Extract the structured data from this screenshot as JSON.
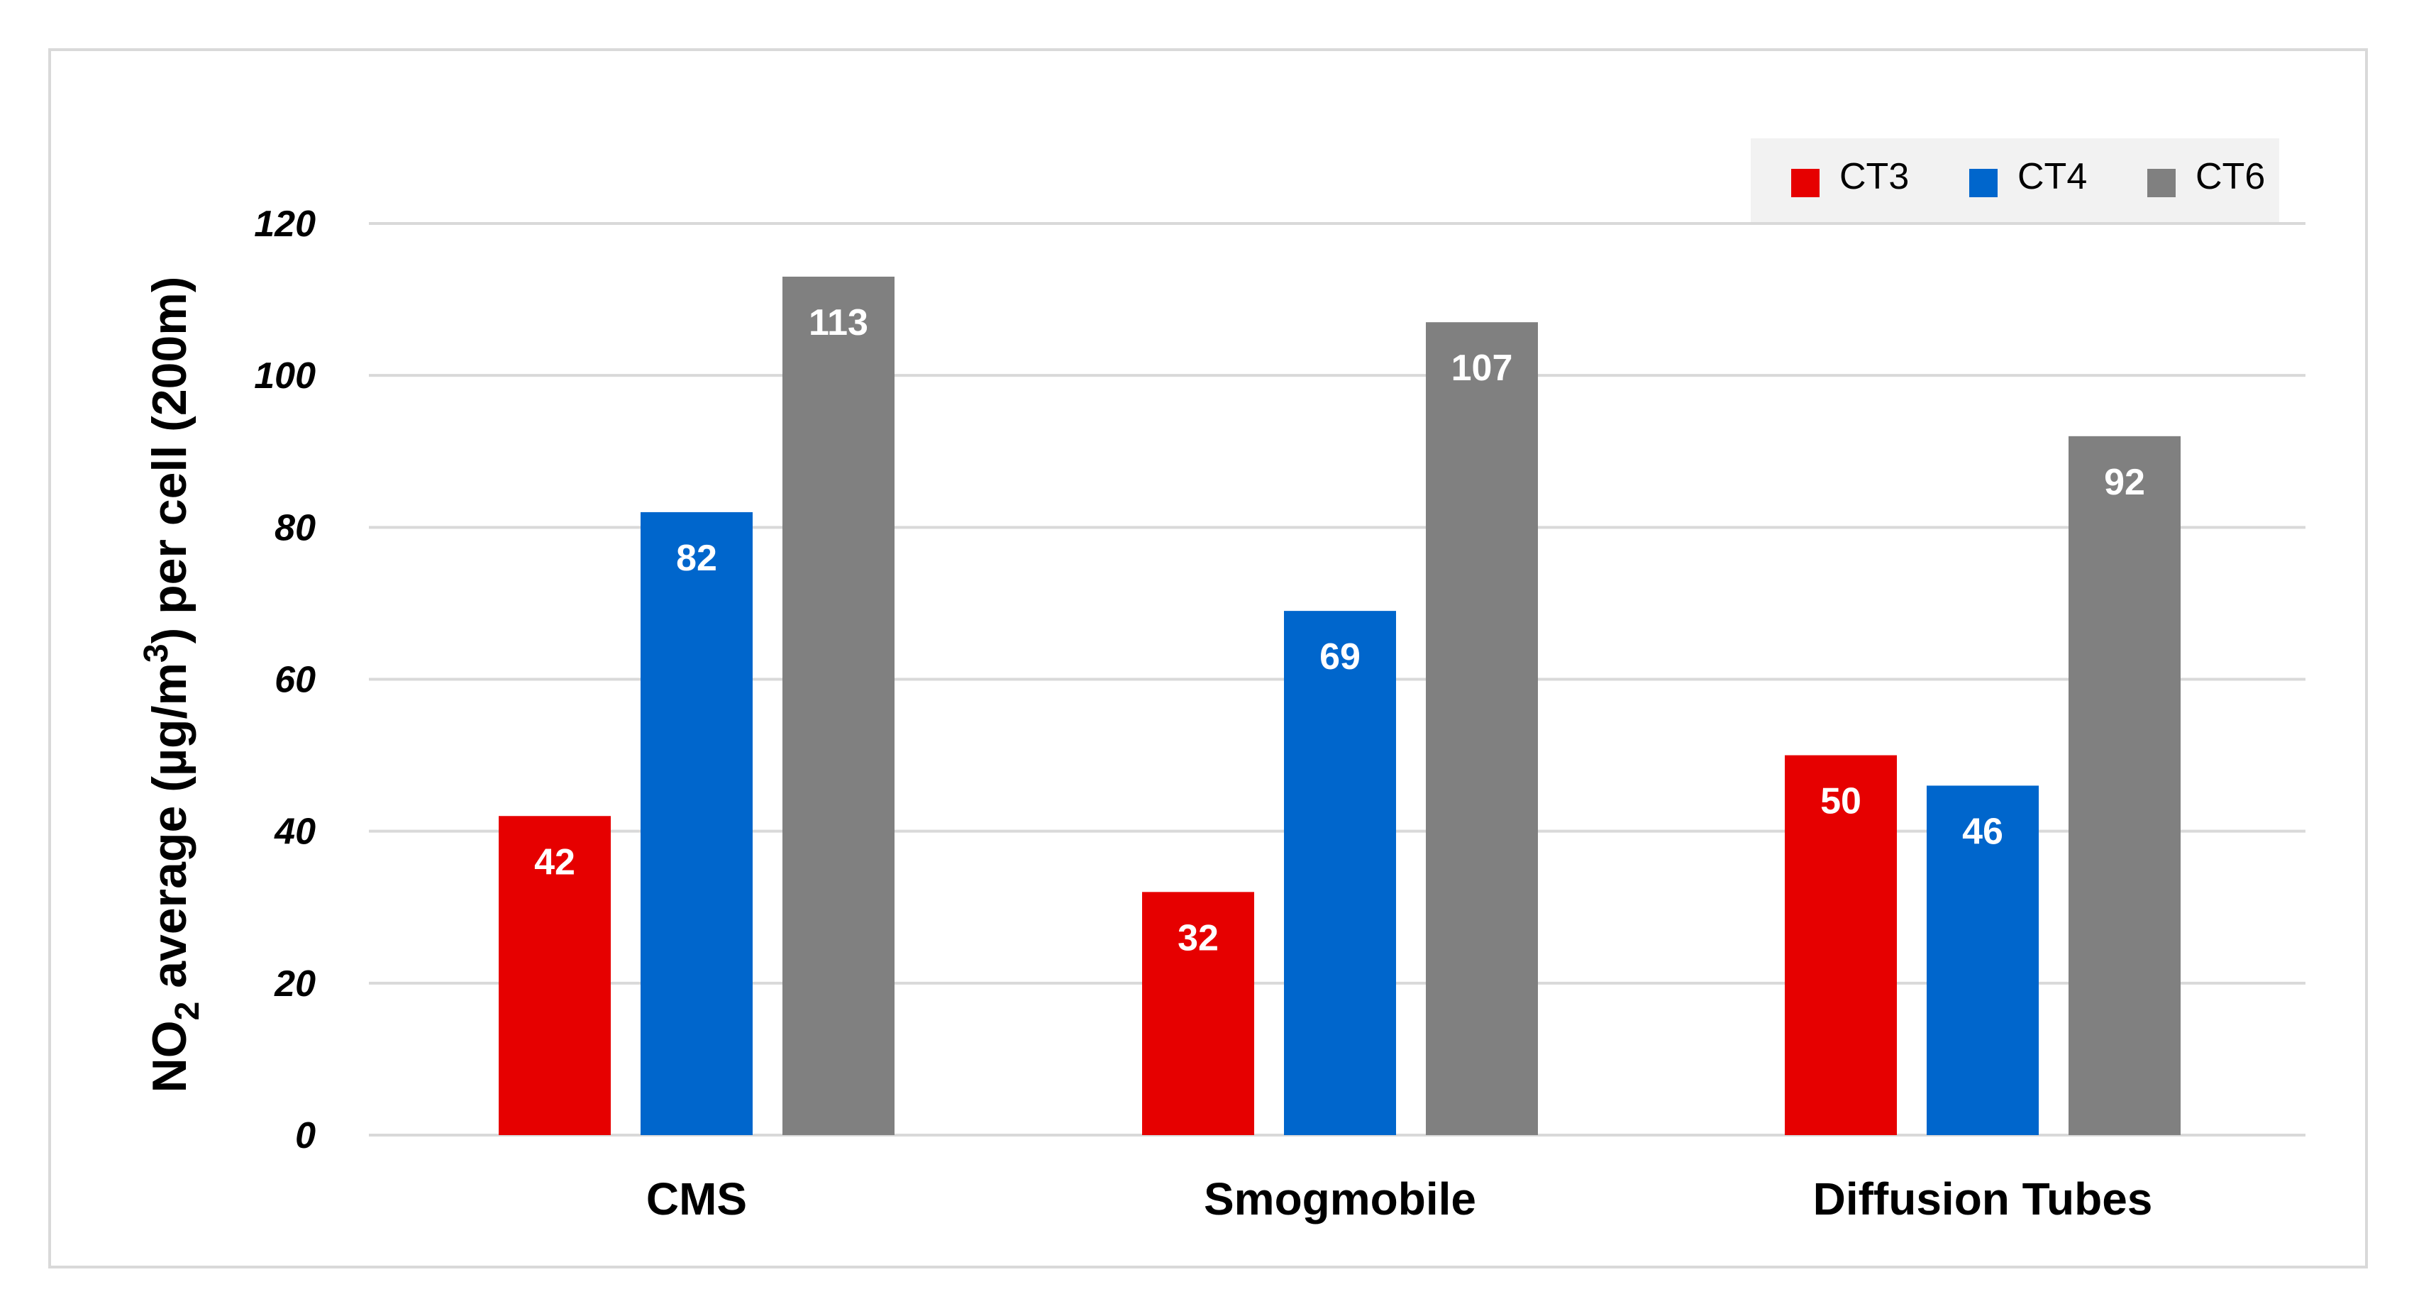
{
  "chart_data": {
    "type": "bar",
    "title": "",
    "xlabel": "",
    "ylabel": {
      "prefix": "NO",
      "sub": "2",
      "mid": " average (µg/m",
      "sup": "3",
      "suffix": ") per cell (200m)"
    },
    "ylim": [
      0,
      120
    ],
    "yticks": [
      "0",
      "20",
      "40",
      "60",
      "80",
      "100",
      "120"
    ],
    "categories": [
      "CMS",
      "Smogmobile",
      "Diffusion Tubes"
    ],
    "series": [
      {
        "name": "CT3",
        "color": "#e60000",
        "values": [
          42,
          32,
          50
        ]
      },
      {
        "name": "CT4",
        "color": "#0066cc",
        "values": [
          82,
          69,
          46
        ]
      },
      {
        "name": "CT6",
        "color": "#808080",
        "values": [
          113,
          107,
          92
        ]
      }
    ],
    "legend_position": "top-right",
    "grid": true
  }
}
